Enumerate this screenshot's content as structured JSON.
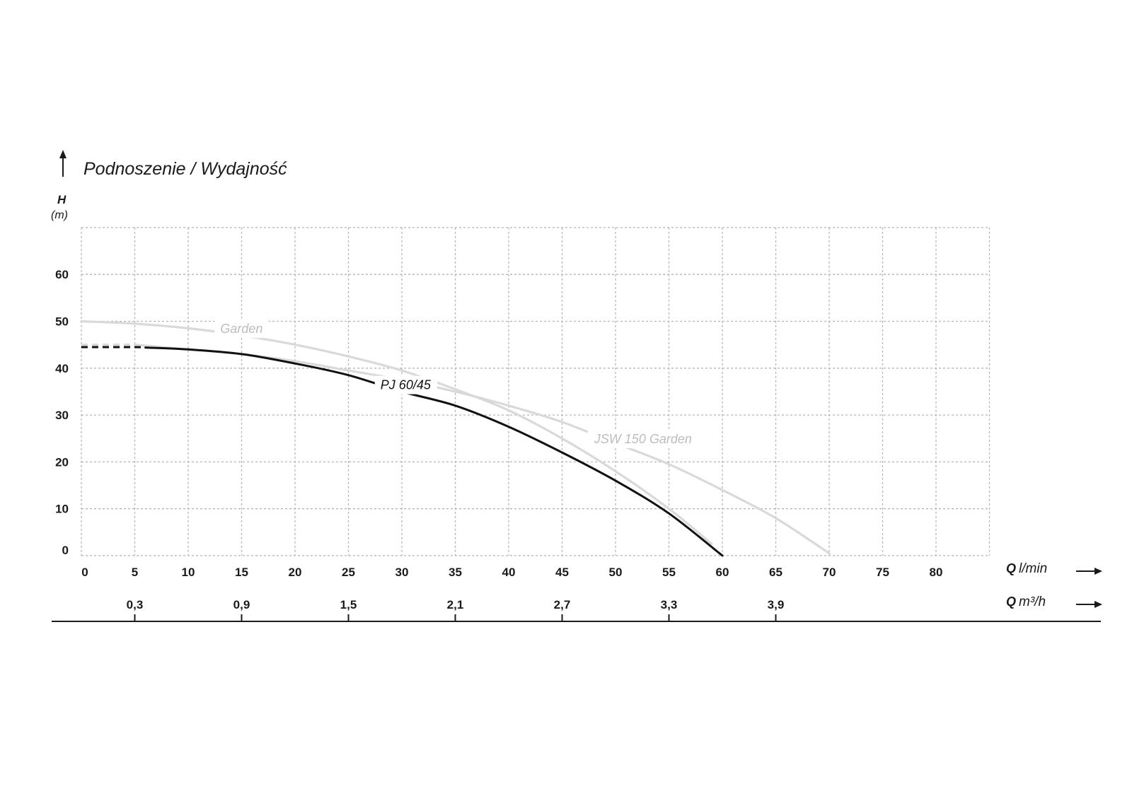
{
  "chart_data": {
    "type": "line",
    "title": "Podnoszenie / Wydajność",
    "ylabel": "H",
    "yunit": "(m)",
    "xlabel_main": "Q",
    "xlabel_unit": "l/min",
    "x2label_main": "Q",
    "x2label_unit": "m³/h",
    "xlim": [
      0,
      85
    ],
    "ylim": [
      0,
      70
    ],
    "x_ticks": [
      "0",
      "5",
      "10",
      "15",
      "20",
      "25",
      "30",
      "35",
      "40",
      "45",
      "50",
      "55",
      "60",
      "65",
      "70",
      "75",
      "80"
    ],
    "y_ticks": [
      "0",
      "10",
      "20",
      "30",
      "40",
      "50",
      "60"
    ],
    "x2_ticks": [
      {
        "label": "0,3",
        "lmin": 5
      },
      {
        "label": "0,9",
        "lmin": 15
      },
      {
        "label": "1,5",
        "lmin": 25
      },
      {
        "label": "2,1",
        "lmin": 35
      },
      {
        "label": "2,7",
        "lmin": 45
      },
      {
        "label": "3,3",
        "lmin": 55
      },
      {
        "label": "3,9",
        "lmin": 65
      }
    ],
    "grid": true,
    "series": [
      {
        "name": "Garden",
        "color": "#d9d9d9",
        "label_at": [
          13,
          47.5
        ],
        "dashed_until": null,
        "points": [
          [
            0,
            50
          ],
          [
            5,
            49.5
          ],
          [
            10,
            48.5
          ],
          [
            15,
            47
          ],
          [
            20,
            45
          ],
          [
            25,
            42.5
          ],
          [
            30,
            39.5
          ],
          [
            35,
            35.5
          ],
          [
            40,
            31
          ],
          [
            45,
            25
          ],
          [
            50,
            18
          ],
          [
            55,
            10
          ],
          [
            59,
            2.5
          ]
        ]
      },
      {
        "name": "JSW 150 Garden",
        "color": "#d9d9d9",
        "label_at": [
          48,
          24
        ],
        "dashed_until": 5,
        "points": [
          [
            0,
            45
          ],
          [
            5,
            45
          ],
          [
            10,
            44
          ],
          [
            15,
            43
          ],
          [
            20,
            41.5
          ],
          [
            25,
            39.5
          ],
          [
            30,
            37.5
          ],
          [
            35,
            35
          ],
          [
            40,
            32
          ],
          [
            45,
            28.5
          ],
          [
            50,
            24
          ],
          [
            55,
            19.5
          ],
          [
            60,
            14
          ],
          [
            65,
            8
          ],
          [
            70,
            0.5
          ]
        ]
      },
      {
        "name": "PJ 60/45",
        "color": "#111111",
        "label_at": [
          28,
          35.5
        ],
        "dashed_until": 6,
        "points": [
          [
            0,
            44.5
          ],
          [
            5,
            44.5
          ],
          [
            10,
            44
          ],
          [
            15,
            43
          ],
          [
            20,
            41
          ],
          [
            25,
            38.5
          ],
          [
            30,
            35
          ],
          [
            35,
            32
          ],
          [
            40,
            27.5
          ],
          [
            45,
            22
          ],
          [
            50,
            16
          ],
          [
            55,
            9
          ],
          [
            60,
            0
          ]
        ]
      }
    ]
  }
}
